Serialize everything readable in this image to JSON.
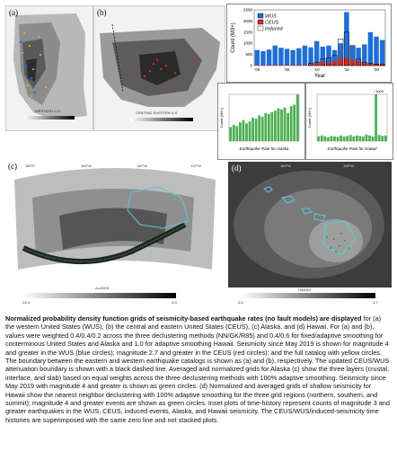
{
  "panels": {
    "a": {
      "label": "(a)",
      "map_title": "WESTERN U.S."
    },
    "b": {
      "label": "(b)",
      "map_title": "CENTRAL EASTERN U.S."
    },
    "c": {
      "label": "(c)",
      "map_title": "ALASKA",
      "lon_ticks": [
        "180°E",
        "160°W",
        "140°W",
        "120°W"
      ],
      "cbar_min": "-12.4",
      "cbar_max": "-3.3"
    },
    "d": {
      "label": "(d)",
      "map_title": "HAWAII",
      "lon_ticks": [
        "160°W",
        "155°W"
      ],
      "cbar_min": "-6.4",
      "cbar_max": "-1.7"
    }
  },
  "chart_data": [
    {
      "type": "bar",
      "title": "",
      "ylabel": "Count (M3+)",
      "xlabel": "Year",
      "x_ticks": [
        "'00",
        "'05",
        "'10",
        "'15",
        "'20"
      ],
      "y_ticks": [
        "0",
        "500",
        "1000",
        "1500",
        "2000",
        "2500"
      ],
      "ylim": [
        0,
        2500
      ],
      "legend": [
        {
          "name": "WUS",
          "color": "#1f6fd6"
        },
        {
          "name": "CEUS",
          "color": "#d62728"
        },
        {
          "name": "Induced",
          "color": "#ffffff"
        }
      ],
      "categories": [
        "2000",
        "2001",
        "2002",
        "2003",
        "2004",
        "2005",
        "2006",
        "2007",
        "2008",
        "2009",
        "2010",
        "2011",
        "2012",
        "2013",
        "2014",
        "2015",
        "2016",
        "2017",
        "2018",
        "2019",
        "2020",
        "2021"
      ],
      "series": [
        {
          "name": "WUS",
          "values": [
            700,
            650,
            720,
            900,
            800,
            750,
            700,
            780,
            900,
            820,
            1100,
            850,
            900,
            700,
            1000,
            2400,
            900,
            800,
            950,
            1500,
            1300,
            1150
          ]
        },
        {
          "name": "CEUS",
          "values": [
            20,
            20,
            25,
            20,
            20,
            25,
            20,
            25,
            30,
            60,
            120,
            150,
            130,
            200,
            300,
            350,
            250,
            180,
            120,
            100,
            80,
            70
          ]
        },
        {
          "name": "Induced",
          "values": [
            0,
            0,
            0,
            0,
            0,
            0,
            0,
            0,
            0,
            100,
            150,
            300,
            350,
            450,
            1200,
            1500,
            900,
            300,
            150,
            100,
            60,
            40
          ]
        }
      ]
    },
    {
      "type": "bar",
      "title": "Earthquake Rate for Alaska",
      "ylabel": "Count (M3+)",
      "categories": [
        "1",
        "2",
        "3",
        "4",
        "5",
        "6",
        "7",
        "8",
        "9",
        "10",
        "11",
        "12",
        "13",
        "14",
        "15",
        "16",
        "17",
        "18",
        "19",
        "20",
        "21",
        "22"
      ],
      "values": [
        30,
        35,
        32,
        40,
        45,
        38,
        42,
        50,
        48,
        55,
        52,
        60,
        58,
        62,
        65,
        70,
        68,
        72,
        60,
        75,
        78,
        100
      ],
      "ylim": [
        0,
        100
      ]
    },
    {
      "type": "bar",
      "title": "Earthquake Rate for Hawaii",
      "ylabel": "Count (M3+)",
      "annotation": "~1000",
      "categories": [
        "1",
        "2",
        "3",
        "4",
        "5",
        "6",
        "7",
        "8",
        "9",
        "10",
        "11",
        "12",
        "13",
        "14",
        "15",
        "16",
        "17",
        "18",
        "19",
        "20",
        "21",
        "22"
      ],
      "values": [
        10,
        12,
        10,
        8,
        11,
        10,
        9,
        12,
        10,
        11,
        13,
        10,
        12,
        11,
        10,
        14,
        12,
        10,
        100,
        13,
        11,
        12
      ],
      "ylim": [
        0,
        100
      ]
    }
  ],
  "caption": {
    "bold": "Normalized probability density function grids of seismicity-based earthquake rates (no fault models) are displayed",
    "body": "for (a) the western United States (WUS), (b) the central and eastern United States (CEUS), (c) Alaska, and (d) Hawaii. For (a) and (b), values were weighted 0.4/0.4/0.2 across the three declustering methods (NN/GK/R85) and 0.4/0.6 for fixed/adaptive smoothing for conterminous United States and Alaska and 1.0 for adaptive smoothing Hawaii. Seismicity since May 2019 is shown for magnitude 4 and greater in the WUS (blue circles); magnitude 2.7 and greater in the CEUS (red circles); and the full catalog with yellow circles. The boundary between the eastern and western earthquake catalogs is shown as (a) and (b), respectively. The updated CEUS/WUS attenuation boundary is shown with a black dashed line. Averaged and normalized grids for Alaska (c) show the three layers (crustal, interface, and slab) based on equal weights across the three declustering methods with 100% adaptive smoothing. Seismicity since May 2019 with magnitude 4 and greater is shown as green circles. (d) Normalized and averaged grids of shallow seismicity for Hawaii show the nearest neighbor declustering with 100% adaptive smoothing for the three grid regions (northern, southern, and summit); magnitude 4 and greater events are shown as green circles. Inset plots of time-history represent counts of magnitude 3 and greater earthquakes in the WUS, CEUS, induced events, Alaska, and Hawaii seismicity. The CEUS/WUS/induced-seismicity time histories are superimposed with the same zero line and not stacked plots."
  }
}
